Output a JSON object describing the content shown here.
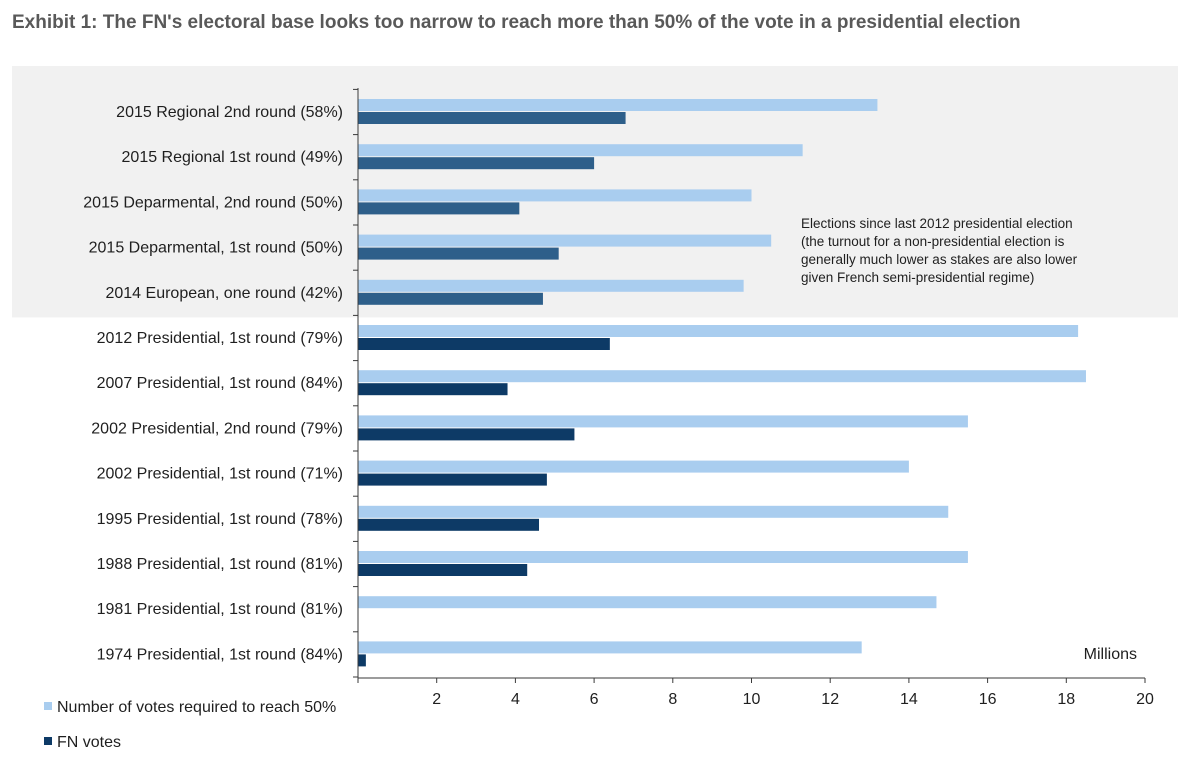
{
  "title": "Exhibit 1: The FN's electoral base looks too narrow to reach more than 50% of the vote in a presidential election",
  "colors": {
    "required": "#a9cdef",
    "fn_highlight": "#2e5f8a",
    "fn": "#0d3a66",
    "shade": "#f1f1f1",
    "axis": "#3a3a3a"
  },
  "chart_data": {
    "type": "bar",
    "orientation": "horizontal",
    "categories": [
      "2015 Regional 2nd round (58%)",
      "2015 Regional 1st round (49%)",
      "2015 Deparmental, 2nd round (50%)",
      "2015 Deparmental, 1st round (50%)",
      "2014 European, one round (42%)",
      "2012 Presidential, 1st round (79%)",
      "2007 Presidential, 1st round (84%)",
      "2002 Presidential, 2nd round (79%)",
      "2002 Presidential, 1st round (71%)",
      "1995 Presidential, 1st round (78%)",
      "1988 Presidential, 1st round (81%)",
      "1981 Presidential, 1st round (81%)",
      "1974 Presidential, 1st round (84%)"
    ],
    "series": [
      {
        "name": "Number of votes required to reach 50%",
        "values": [
          13.2,
          11.3,
          10.0,
          10.5,
          9.8,
          18.3,
          18.5,
          15.5,
          14.0,
          15.0,
          15.5,
          14.7,
          12.8
        ]
      },
      {
        "name": "FN votes",
        "values": [
          6.8,
          6.0,
          4.1,
          5.1,
          4.7,
          6.4,
          3.8,
          5.5,
          4.8,
          4.6,
          4.3,
          0,
          0.2
        ]
      }
    ],
    "xlim": [
      0,
      20
    ],
    "xticks": [
      "2",
      "4",
      "6",
      "8",
      "10",
      "12",
      "14",
      "16",
      "18",
      "20"
    ],
    "unit_label": "Millions",
    "annotation": [
      "Elections since last 2012 presidential election",
      "(the turnout for a non-presidential election is",
      "generally much lower as stakes are also lower",
      "given French semi-presidential regime)"
    ],
    "highlighted_categories": 5,
    "legend_position": "bottom-left",
    "grid": false
  }
}
